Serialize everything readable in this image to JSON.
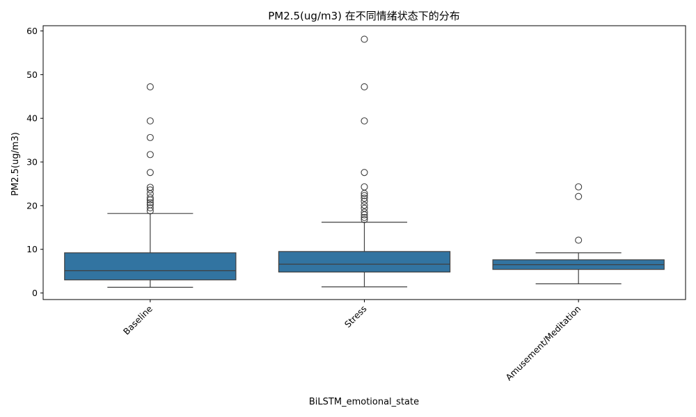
{
  "chart_data": {
    "type": "box",
    "title": "PM2.5(ug/m3) 在不同情绪状态下的分布",
    "xlabel": "BiLSTM_emotional_state",
    "ylabel": "PM2.5(ug/m3)",
    "ylim": [
      -1.5,
      61.2
    ],
    "yticks": [
      0,
      10,
      20,
      30,
      40,
      50,
      60
    ],
    "grid": false,
    "categories": [
      "Baseline",
      "Stress",
      "Amusement/Meditation"
    ],
    "box_color": "#3274a1",
    "boxes": [
      {
        "category": "Baseline",
        "whisker_low": 1.3,
        "q1": 3.0,
        "median": 5.1,
        "q3": 9.2,
        "whisker_high": 18.2,
        "outliers": [
          18.8,
          19.5,
          20.2,
          20.7,
          21.3,
          21.8,
          22.7,
          23.6,
          24.2,
          27.6,
          31.7,
          35.6,
          39.4,
          47.2
        ]
      },
      {
        "category": "Stress",
        "whisker_low": 1.4,
        "q1": 4.8,
        "median": 6.6,
        "q3": 9.5,
        "whisker_high": 16.2,
        "outliers": [
          16.8,
          17.3,
          17.9,
          18.5,
          19.4,
          20.1,
          21.0,
          21.7,
          22.3,
          22.8,
          24.3,
          27.6,
          39.4,
          47.2,
          58.1
        ]
      },
      {
        "category": "Amusement/Meditation",
        "whisker_low": 2.1,
        "q1": 5.4,
        "median": 6.5,
        "q3": 7.6,
        "whisker_high": 9.2,
        "outliers": [
          12.1,
          22.1,
          24.3
        ]
      }
    ]
  }
}
